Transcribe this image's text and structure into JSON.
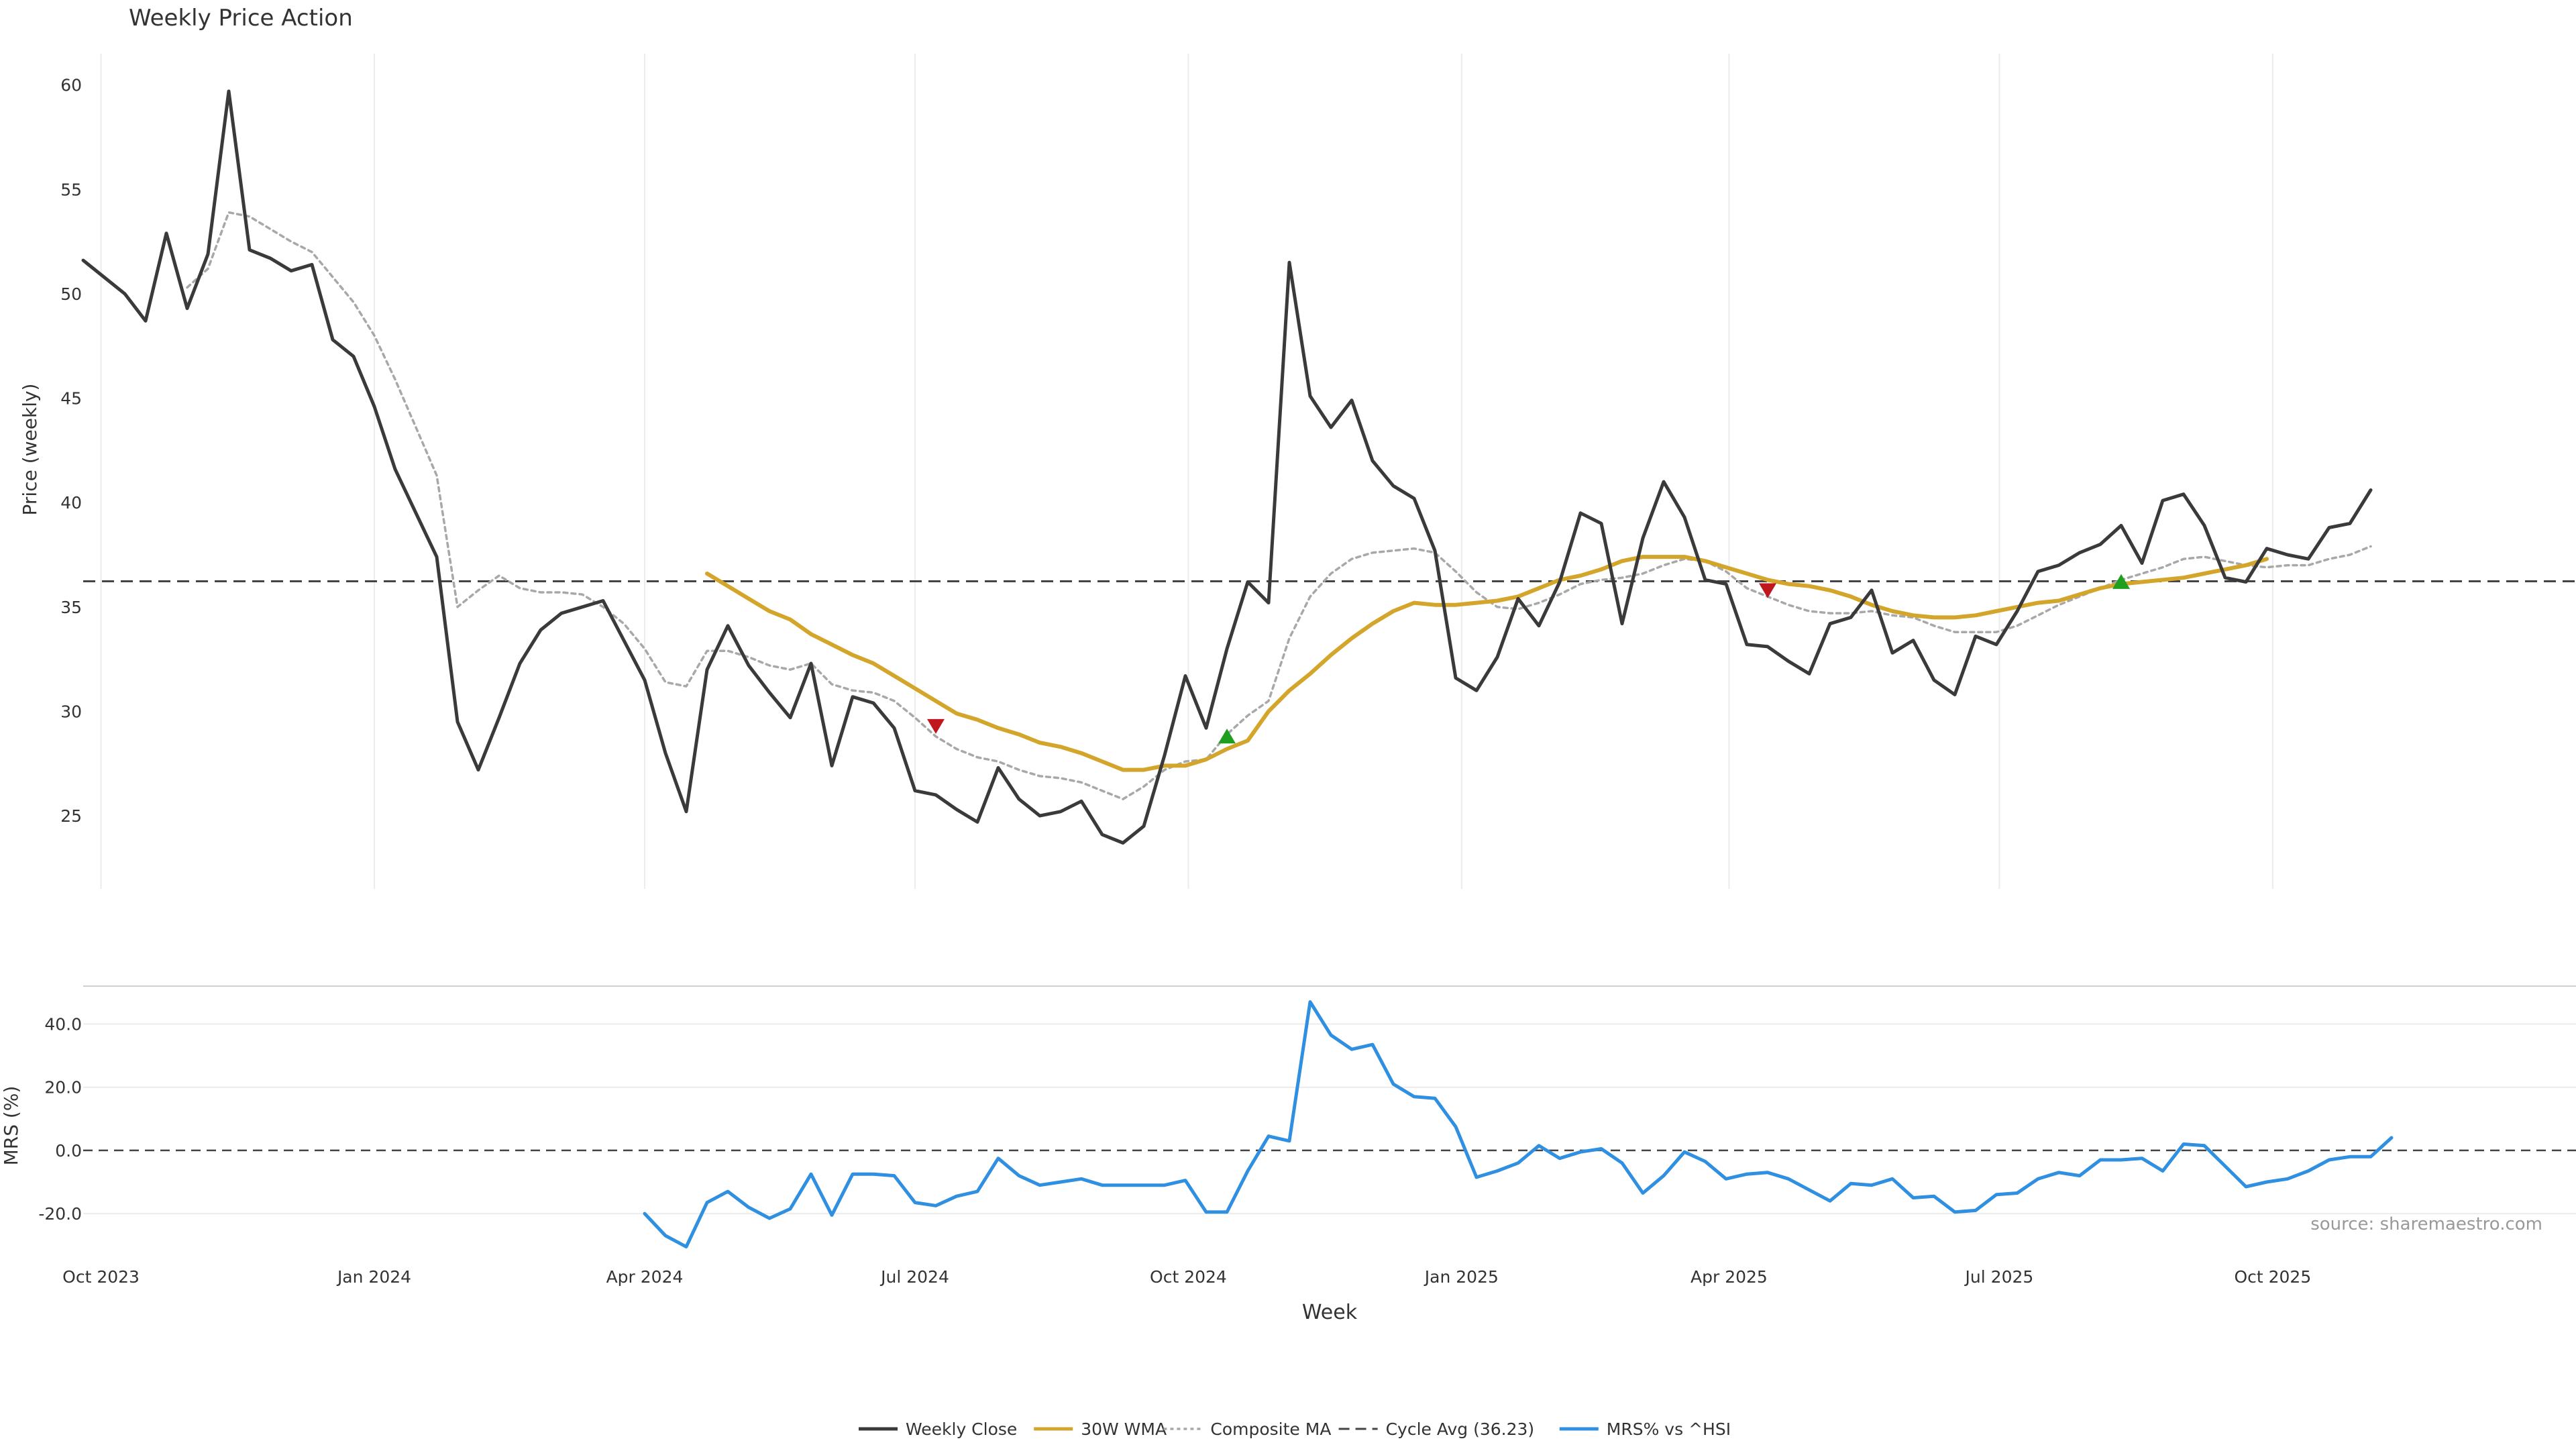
{
  "chart_data": {
    "type": "line",
    "title": "Weekly Price Action",
    "xlabel": "Week",
    "source": "source: sharemaestro.com",
    "x_tick_labels": [
      "Oct 2023",
      "Jan 2024",
      "Apr 2024",
      "Jul 2024",
      "Oct 2024",
      "Jan 2025",
      "Apr 2025",
      "Jul 2025",
      "Oct 2025"
    ],
    "price_panel": {
      "ylabel": "Price (weekly)",
      "ylim": [
        21.5,
        61.5
      ],
      "y_ticks": [
        25,
        30,
        35,
        40,
        45,
        50,
        55,
        60
      ],
      "grid": "vertical"
    },
    "mrs_panel": {
      "ylabel": "MRS (%)",
      "ylim": [
        -34,
        52
      ],
      "y_ticks": [
        -20,
        0,
        20,
        40
      ],
      "y_tick_labels": [
        "-20.0",
        "0.0",
        "20.0",
        "40.0"
      ],
      "grid": "horizontal"
    },
    "weeks_start": "2023-09-25",
    "series": [
      {
        "name": "Weekly Close",
        "color": "#3a3a3a",
        "style": "solid",
        "panel": "price",
        "values": [
          51.6,
          50.8,
          50.0,
          48.7,
          52.9,
          49.3,
          51.9,
          59.7,
          52.1,
          51.7,
          51.1,
          51.4,
          47.8,
          47.0,
          44.6,
          41.6,
          39.5,
          37.4,
          29.5,
          27.2,
          29.7,
          32.3,
          33.9,
          34.7,
          35.0,
          35.3,
          33.4,
          31.5,
          28.0,
          25.2,
          32.0,
          34.1,
          32.2,
          30.9,
          29.7,
          32.3,
          27.4,
          30.7,
          30.4,
          29.2,
          26.2,
          26.0,
          25.3,
          24.7,
          27.3,
          25.8,
          25.0,
          25.2,
          25.7,
          24.1,
          23.7,
          24.5,
          27.9,
          31.7,
          29.2,
          33.0,
          36.2,
          35.2,
          51.5,
          45.1,
          43.6,
          44.9,
          42.0,
          40.8,
          40.2,
          37.7,
          31.6,
          31.0,
          32.6,
          35.4,
          34.1,
          36.2,
          39.5,
          39.0,
          34.2,
          38.3,
          41.0,
          39.3,
          36.3,
          36.1,
          33.2,
          33.1,
          32.4,
          31.8,
          34.2,
          34.5,
          35.8,
          32.8,
          33.4,
          31.5,
          30.8,
          33.6,
          33.2,
          34.8,
          36.7,
          37.0,
          37.6,
          38.0,
          38.9,
          37.1,
          40.1,
          40.4,
          38.9,
          36.4,
          36.2,
          37.8,
          37.5,
          37.3,
          38.8,
          39.0,
          40.6
        ]
      },
      {
        "name": "30W WMA",
        "color": "#d4a52b",
        "style": "solid",
        "panel": "price",
        "start_week": 30,
        "values": [
          36.6,
          36.0,
          35.4,
          34.8,
          34.4,
          33.7,
          33.2,
          32.7,
          32.3,
          31.7,
          31.1,
          30.5,
          29.9,
          29.6,
          29.2,
          28.9,
          28.5,
          28.3,
          28.0,
          27.6,
          27.2,
          27.2,
          27.4,
          27.4,
          27.7,
          28.2,
          28.6,
          30.0,
          31.0,
          31.8,
          32.7,
          33.5,
          34.2,
          34.8,
          35.2,
          35.1,
          35.1,
          35.2,
          35.3,
          35.5,
          35.9,
          36.3,
          36.5,
          36.8,
          37.2,
          37.4,
          37.4,
          37.4,
          37.2,
          36.9,
          36.6,
          36.3,
          36.1,
          36.0,
          35.8,
          35.5,
          35.1,
          34.8,
          34.6,
          34.5,
          34.5,
          34.6,
          34.8,
          35.0,
          35.2,
          35.3,
          35.6,
          35.9,
          36.1,
          36.2,
          36.3,
          36.4,
          36.6,
          36.8,
          37.0,
          37.3
        ]
      },
      {
        "name": "Composite MA",
        "color": "#a8a8a8",
        "style": "dotted",
        "panel": "price",
        "values": [
          null,
          null,
          null,
          null,
          null,
          50.3,
          51.2,
          53.9,
          53.7,
          53.1,
          52.5,
          52.0,
          50.8,
          49.6,
          48.0,
          45.9,
          43.6,
          41.3,
          35.0,
          35.8,
          36.5,
          35.9,
          35.7,
          35.7,
          35.6,
          35.0,
          34.2,
          33.0,
          31.4,
          31.2,
          32.9,
          32.9,
          32.6,
          32.2,
          32.0,
          32.3,
          31.3,
          31.0,
          30.9,
          30.5,
          29.7,
          28.8,
          28.2,
          27.8,
          27.6,
          27.2,
          26.9,
          26.8,
          26.6,
          26.2,
          25.8,
          26.4,
          27.2,
          27.6,
          27.7,
          28.9,
          29.8,
          30.5,
          33.5,
          35.5,
          36.6,
          37.3,
          37.6,
          37.7,
          37.8,
          37.6,
          36.7,
          35.7,
          35.0,
          34.9,
          35.2,
          35.6,
          36.1,
          36.3,
          36.4,
          36.6,
          37.0,
          37.3,
          37.2,
          36.7,
          35.9,
          35.5,
          35.1,
          34.8,
          34.7,
          34.7,
          34.8,
          34.6,
          34.5,
          34.1,
          33.8,
          33.8,
          33.8,
          34.1,
          34.6,
          35.1,
          35.5,
          35.9,
          36.3,
          36.6,
          36.9,
          37.3,
          37.4,
          37.2,
          37.0,
          36.9,
          37.0,
          37.0,
          37.3,
          37.5,
          37.9
        ]
      },
      {
        "name": "Cycle Avg (36.23)",
        "color": "#444444",
        "style": "dashed",
        "panel": "price",
        "value": 36.23
      },
      {
        "name": "MRS% vs ^HSI",
        "color": "#2f8fe0",
        "style": "solid",
        "panel": "mrs",
        "start_week": 27,
        "values": [
          -20.0,
          -27.0,
          -30.5,
          -16.5,
          -13.0,
          -18.0,
          -21.5,
          -18.5,
          -7.5,
          -20.5,
          -7.5,
          -7.5,
          -8.0,
          -16.5,
          -17.5,
          -14.5,
          -13.0,
          -2.5,
          -8.0,
          -11.0,
          -10.0,
          -9.0,
          -11.0,
          -11.0,
          -11.0,
          -11.0,
          -9.5,
          -19.5,
          -19.5,
          -6.5,
          4.5,
          3.0,
          47.0,
          36.5,
          32.0,
          33.5,
          21.0,
          17.0,
          16.5,
          7.5,
          -8.5,
          -6.5,
          -4.0,
          1.5,
          -2.5,
          -0.5,
          0.5,
          -4.0,
          -13.5,
          -8.0,
          -0.5,
          -3.5,
          -9.0,
          -7.5,
          -7.0,
          -9.0,
          -12.5,
          -16.0,
          -10.5,
          -11.0,
          -9.0,
          -15.0,
          -14.5,
          -19.5,
          -19.0,
          -14.0,
          -13.5,
          -9.0,
          -7.0,
          -8.0,
          -3.0,
          -3.0,
          -2.5,
          -6.5,
          2.0,
          1.5,
          -5.0,
          -11.5,
          -10.0,
          -9.0,
          -6.5,
          -3.0,
          -2.0,
          -2.0,
          4.0
        ]
      }
    ],
    "markers": [
      {
        "type": "sell",
        "symbol": "triangle-down",
        "color": "#c0171f",
        "week": 41,
        "value": 29.3
      },
      {
        "type": "buy",
        "symbol": "triangle-up",
        "color": "#1f9e1f",
        "week": 55,
        "value": 28.8
      },
      {
        "type": "sell",
        "symbol": "triangle-down",
        "color": "#c0171f",
        "week": 81,
        "value": 35.8
      },
      {
        "type": "buy",
        "symbol": "triangle-up",
        "color": "#1f9e1f",
        "week": 98,
        "value": 36.2
      }
    ],
    "legend": {
      "placement": "bottom-center",
      "entries": [
        "Weekly Close",
        "30W WMA",
        "Composite MA",
        "Cycle Avg (36.23)",
        "MRS% vs ^HSI"
      ]
    }
  }
}
